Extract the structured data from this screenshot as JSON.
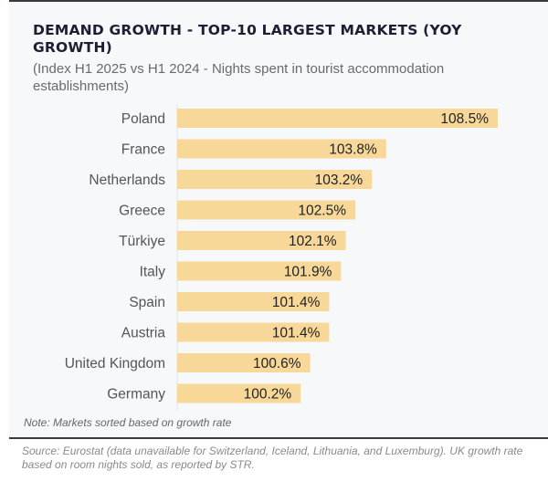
{
  "chart_data": {
    "type": "bar",
    "orientation": "horizontal",
    "title": "DEMAND GROWTH - TOP-10 LARGEST MARKETS (YOY GROWTH)",
    "subtitle": "(Index H1 2025 vs H1 2024 - Nights spent in tourist accommodation establishments)",
    "categories": [
      "Poland",
      "France",
      "Netherlands",
      "Greece",
      "Türkiye",
      "Italy",
      "Spain",
      "Austria",
      "United Kingdom",
      "Germany"
    ],
    "values": [
      108.5,
      103.8,
      103.2,
      102.5,
      102.1,
      101.9,
      101.4,
      101.4,
      100.6,
      100.2
    ],
    "value_labels": [
      "108.5%",
      "103.8%",
      "103.2%",
      "102.5%",
      "102.1%",
      "101.9%",
      "101.4%",
      "101.4%",
      "100.6%",
      "100.2%"
    ],
    "xlabel": "",
    "ylabel": "",
    "xlim": [
      95,
      109.5
    ],
    "grid": false,
    "legend": "none",
    "bar_color": "#f8d898",
    "note": "Note: Markets sorted based on growth rate",
    "source": "Source: Eurostat (data unavailable for Switzerland, Iceland, Lithuania, and Luxemburg). UK growth rate based on room nights sold, as reported by STR."
  }
}
